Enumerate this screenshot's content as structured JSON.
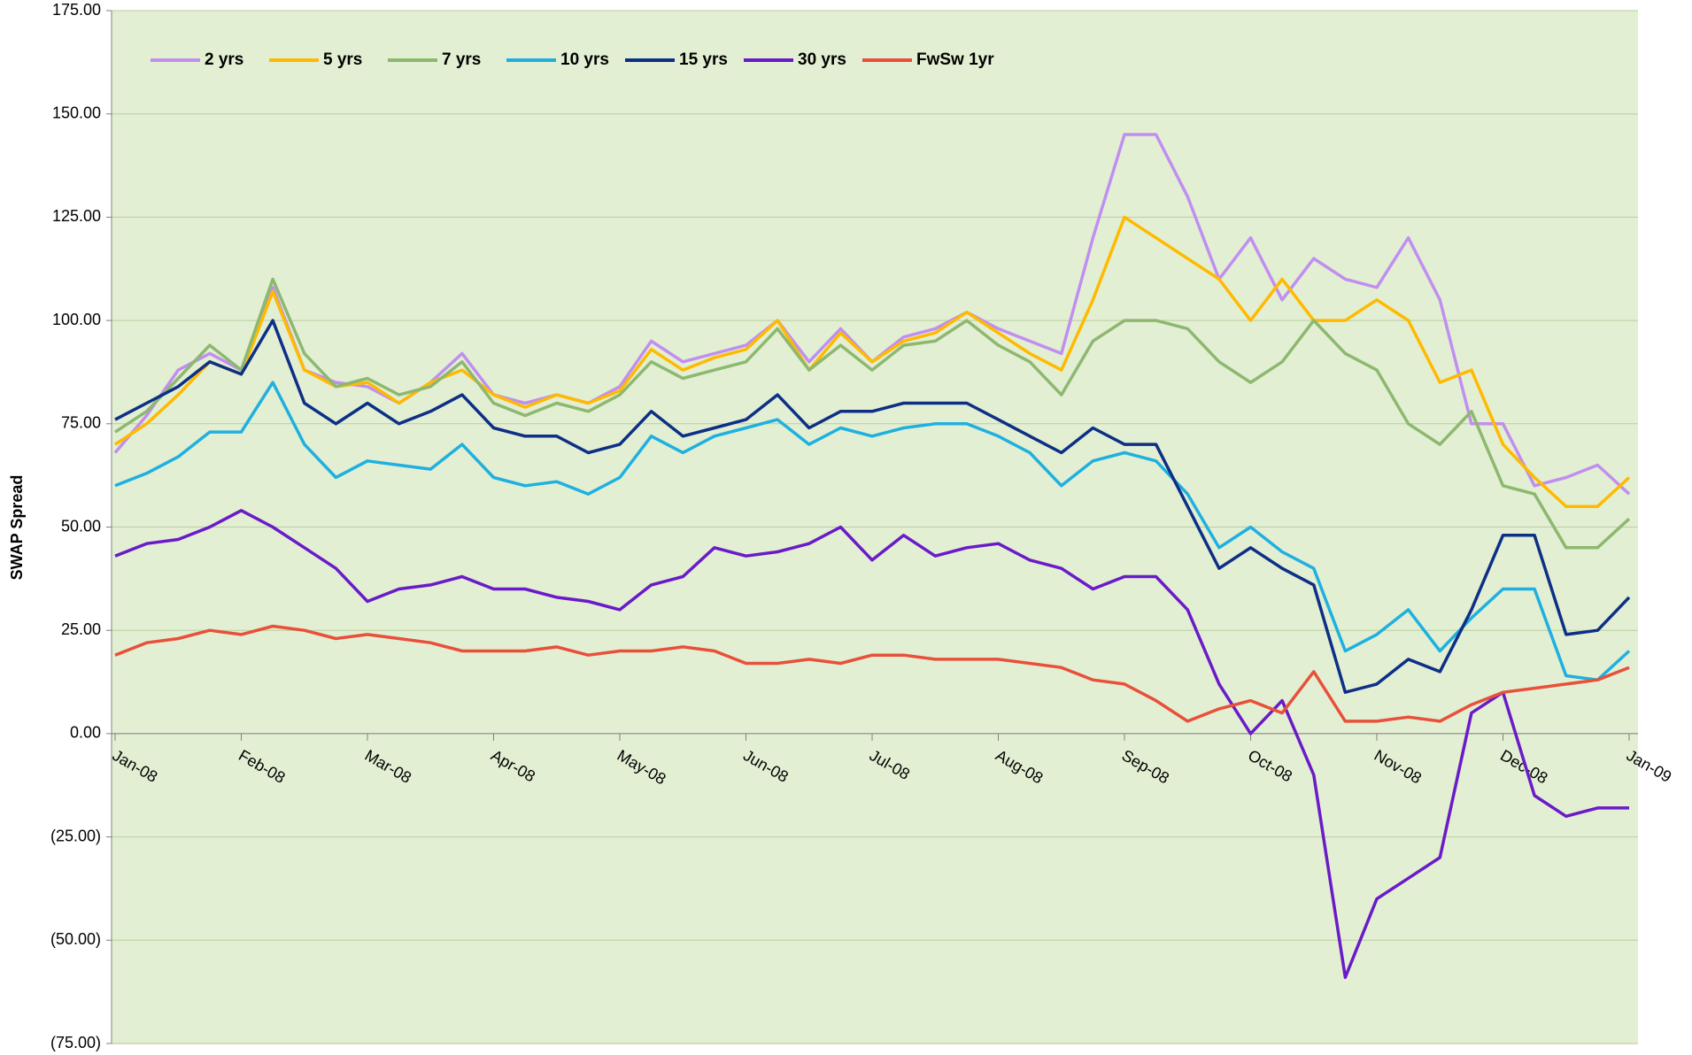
{
  "chart_data": {
    "type": "line",
    "ylabel": "SWAP Spread",
    "x": [
      0,
      0.25,
      0.5,
      0.75,
      1,
      1.25,
      1.5,
      1.75,
      2,
      2.25,
      2.5,
      2.75,
      3,
      3.25,
      3.5,
      3.75,
      4,
      4.25,
      4.5,
      4.75,
      5,
      5.25,
      5.5,
      5.75,
      6,
      6.25,
      6.5,
      6.75,
      7,
      7.25,
      7.5,
      7.75,
      8,
      8.25,
      8.5,
      8.75,
      9,
      9.25,
      9.5,
      9.75,
      10,
      10.25,
      10.5,
      10.75,
      11,
      11.25,
      11.5,
      11.75,
      12
    ],
    "xlim": [
      0,
      12
    ],
    "xticks": [
      {
        "value": 0,
        "label": "Jan-08"
      },
      {
        "value": 1,
        "label": "Feb-08"
      },
      {
        "value": 2,
        "label": "Mar-08"
      },
      {
        "value": 3,
        "label": "Apr-08"
      },
      {
        "value": 4,
        "label": "May-08"
      },
      {
        "value": 5,
        "label": "Jun-08"
      },
      {
        "value": 6,
        "label": "Jul-08"
      },
      {
        "value": 7,
        "label": "Aug-08"
      },
      {
        "value": 8,
        "label": "Sep-08"
      },
      {
        "value": 9,
        "label": "Oct-08"
      },
      {
        "value": 10,
        "label": "Nov-08"
      },
      {
        "value": 11,
        "label": "Dec-08"
      },
      {
        "value": 12,
        "label": "Jan-09"
      }
    ],
    "ylim": [
      -75,
      175
    ],
    "yticks": [
      {
        "value": -75,
        "label": "(75.00)"
      },
      {
        "value": -50,
        "label": "(50.00)"
      },
      {
        "value": -25,
        "label": "(25.00)"
      },
      {
        "value": 0,
        "label": "0.00"
      },
      {
        "value": 25,
        "label": "25.00"
      },
      {
        "value": 50,
        "label": "50.00"
      },
      {
        "value": 75,
        "label": "75.00"
      },
      {
        "value": 100,
        "label": "100.00"
      },
      {
        "value": 125,
        "label": "125.00"
      },
      {
        "value": 150,
        "label": "150.00"
      },
      {
        "value": 175,
        "label": "175.00"
      }
    ],
    "negative_tick_color": "#ff0000",
    "grid": true,
    "legend": "top-left",
    "series": [
      {
        "name": "2 yrs",
        "color": "#c08ff0",
        "values": [
          68,
          77,
          88,
          92,
          88,
          108,
          88,
          85,
          84,
          80,
          85,
          92,
          82,
          80,
          82,
          80,
          84,
          95,
          90,
          92,
          94,
          100,
          90,
          98,
          90,
          96,
          98,
          102,
          98,
          95,
          92,
          120,
          145,
          145,
          130,
          110,
          120,
          105,
          115,
          110,
          108,
          120,
          105,
          75,
          75,
          60,
          62,
          65,
          58
        ]
      },
      {
        "name": "5 yrs",
        "color": "#ffba00",
        "values": [
          70,
          75,
          82,
          90,
          87,
          107,
          88,
          84,
          85,
          80,
          85,
          88,
          82,
          79,
          82,
          80,
          83,
          93,
          88,
          91,
          93,
          100,
          88,
          97,
          90,
          95,
          97,
          102,
          97,
          92,
          88,
          105,
          125,
          120,
          115,
          110,
          100,
          110,
          100,
          100,
          105,
          100,
          85,
          88,
          70,
          62,
          55,
          55,
          62
        ]
      },
      {
        "name": "7 yrs",
        "color": "#8db870",
        "values": [
          73,
          78,
          86,
          94,
          88,
          110,
          92,
          84,
          86,
          82,
          84,
          90,
          80,
          77,
          80,
          78,
          82,
          90,
          86,
          88,
          90,
          98,
          88,
          94,
          88,
          94,
          95,
          100,
          94,
          90,
          82,
          95,
          100,
          100,
          98,
          90,
          85,
          90,
          100,
          92,
          88,
          75,
          70,
          78,
          60,
          58,
          45,
          45,
          52
        ]
      },
      {
        "name": "10 yrs",
        "color": "#1fb0e0",
        "values": [
          60,
          63,
          67,
          73,
          73,
          85,
          70,
          62,
          66,
          65,
          64,
          70,
          62,
          60,
          61,
          58,
          62,
          72,
          68,
          72,
          74,
          76,
          70,
          74,
          72,
          74,
          75,
          75,
          72,
          68,
          60,
          66,
          68,
          66,
          58,
          45,
          50,
          44,
          40,
          20,
          24,
          30,
          20,
          28,
          35,
          35,
          14,
          13,
          20
        ]
      },
      {
        "name": "15 yrs",
        "color": "#0d2f86",
        "values": [
          76,
          80,
          84,
          90,
          87,
          100,
          80,
          75,
          80,
          75,
          78,
          82,
          74,
          72,
          72,
          68,
          70,
          78,
          72,
          74,
          76,
          82,
          74,
          78,
          78,
          80,
          80,
          80,
          76,
          72,
          68,
          74,
          70,
          70,
          55,
          40,
          45,
          40,
          36,
          10,
          12,
          18,
          15,
          30,
          48,
          48,
          24,
          25,
          33
        ]
      },
      {
        "name": "30 yrs",
        "color": "#6a1bc8",
        "values": [
          43,
          46,
          47,
          50,
          54,
          50,
          45,
          40,
          32,
          35,
          36,
          38,
          35,
          35,
          33,
          32,
          30,
          36,
          38,
          45,
          43,
          44,
          46,
          50,
          42,
          48,
          43,
          45,
          46,
          42,
          40,
          35,
          38,
          38,
          30,
          12,
          0,
          8,
          -10,
          -59,
          -40,
          -35,
          -30,
          5,
          10,
          -15,
          -20,
          -18,
          -18
        ]
      },
      {
        "name": "FwSw 1yr",
        "color": "#e8503a",
        "values": [
          19,
          22,
          23,
          25,
          24,
          26,
          25,
          23,
          24,
          23,
          22,
          20,
          20,
          20,
          21,
          19,
          20,
          20,
          21,
          20,
          17,
          17,
          18,
          17,
          19,
          19,
          18,
          18,
          18,
          17,
          16,
          13,
          12,
          8,
          3,
          6,
          8,
          5,
          15,
          3,
          3,
          4,
          3,
          7,
          10,
          11,
          12,
          13,
          16
        ]
      }
    ]
  }
}
